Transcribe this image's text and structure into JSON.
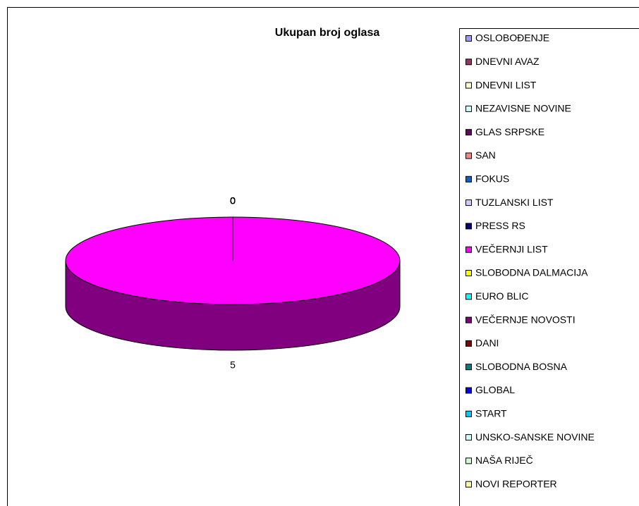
{
  "chart_data": {
    "type": "pie",
    "title": "Ukupan broj oglasa",
    "categories": [
      "OSLOBOĐENJE",
      "DNEVNI AVAZ",
      "DNEVNI LIST",
      "NEZAVISNE NOVINE",
      "GLAS SRPSKE",
      "SAN",
      "FOKUS",
      "TUZLANSKI LIST",
      "PRESS RS",
      "VEČERNJI LIST",
      "SLOBODNA DALMACIJA",
      "EURO BLIC",
      "VEČERNJE NOVOSTI",
      "DANI",
      "SLOBODNA BOSNA",
      "GLOBAL",
      "START",
      "UNSKO-SANSKE NOVINE",
      "NAŠA RIJEČ",
      "NOVI REPORTER"
    ],
    "values": [
      0,
      0,
      0,
      0,
      0,
      0,
      0,
      0,
      0,
      5,
      0,
      0,
      0,
      0,
      0,
      0,
      0,
      0,
      0,
      0
    ],
    "colors": [
      "#9999FF",
      "#993366",
      "#FFFFCC",
      "#CCFFFF",
      "#660066",
      "#FF8080",
      "#0066CC",
      "#CCCCFF",
      "#000080",
      "#FF00FF",
      "#FFFF00",
      "#00FFFF",
      "#800080",
      "#800000",
      "#008080",
      "#0000FF",
      "#00CCFF",
      "#CCFFFF",
      "#CCFFCC",
      "#FFFF99"
    ],
    "legend": "right"
  }
}
